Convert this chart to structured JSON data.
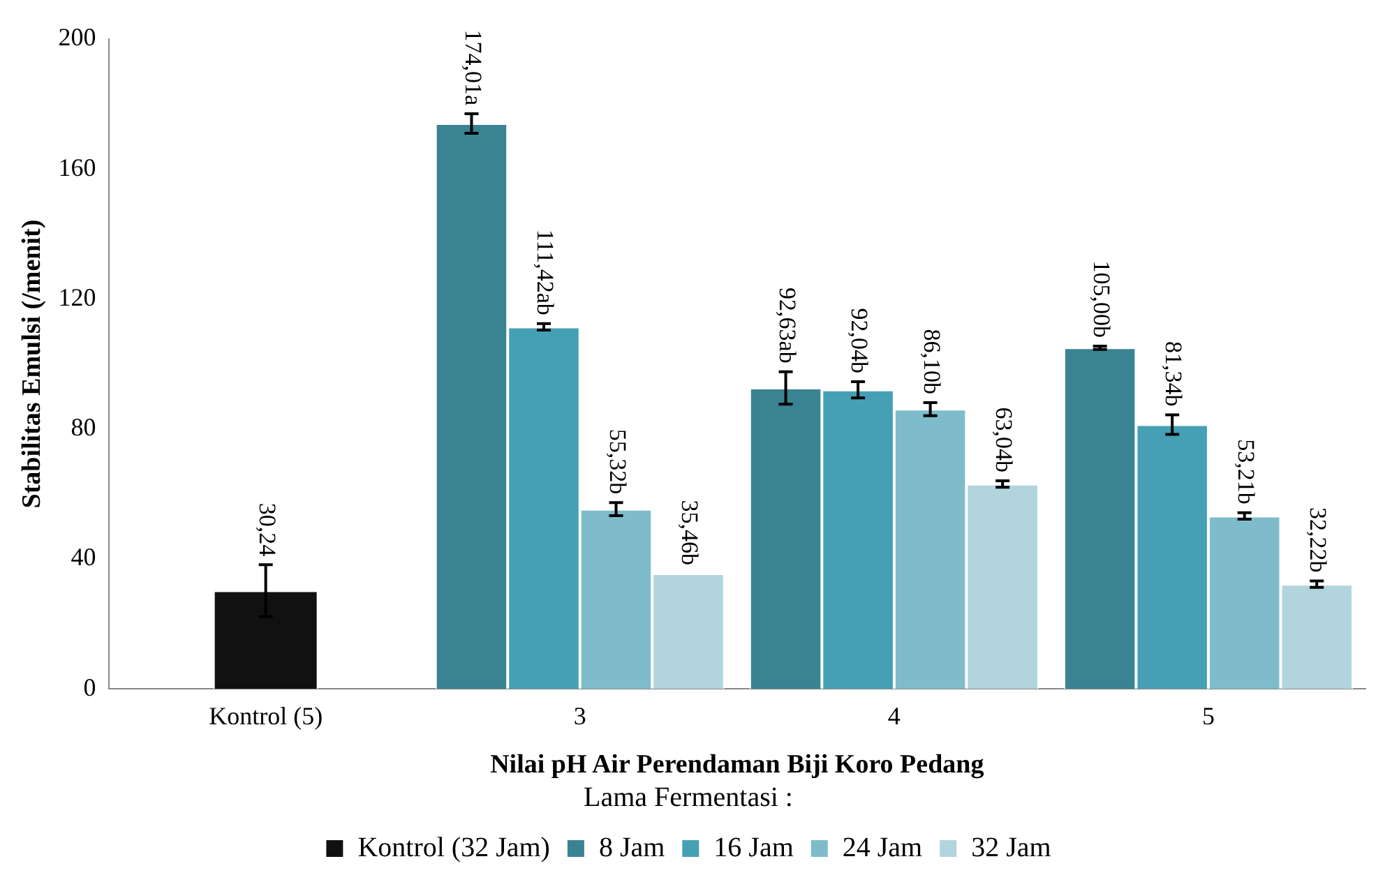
{
  "chart_data": {
    "type": "bar",
    "xlabel": "Nilai pH Air Perendaman Biji Koro Pedang",
    "ylabel": "Stabilitas Emulsi (/menit)",
    "legend_title": "Lama Fermentasi :",
    "categories": [
      "Kontrol (5)",
      "3",
      "4",
      "5"
    ],
    "series": [
      {
        "name": "Kontrol (32 Jam)",
        "color": "#111111",
        "values": [
          30.24,
          null,
          null,
          null
        ],
        "errors": [
          8,
          null,
          null,
          null
        ],
        "value_labels": [
          "30,24",
          null,
          null,
          null
        ]
      },
      {
        "name": "8 Jam",
        "color": "#3a8393",
        "values": [
          null,
          174.01,
          92.63,
          105.0
        ],
        "errors": [
          null,
          3,
          5,
          0.5
        ],
        "value_labels": [
          null,
          "174,01a",
          "92,63ab",
          "105,00b"
        ]
      },
      {
        "name": "16 Jam",
        "color": "#46a0b5",
        "values": [
          null,
          111.42,
          92.04,
          81.34
        ],
        "errors": [
          null,
          1,
          2.5,
          3
        ],
        "value_labels": [
          null,
          "111,42ab",
          "92,04b",
          "81,34b"
        ]
      },
      {
        "name": "24 Jam",
        "color": "#7ebccb",
        "values": [
          null,
          55.32,
          86.1,
          53.21
        ],
        "errors": [
          null,
          2,
          2,
          1
        ],
        "value_labels": [
          null,
          "55,32b",
          "86,10b",
          "53,21b"
        ]
      },
      {
        "name": "32 Jam",
        "color": "#b1d4dd",
        "values": [
          null,
          35.46,
          63.04,
          32.22
        ],
        "errors": [
          null,
          null,
          1,
          1
        ],
        "value_labels": [
          null,
          "35,46b",
          "63,04b",
          "32,22b"
        ]
      }
    ],
    "ylim": [
      0,
      200
    ],
    "yticks": [
      0,
      40,
      80,
      120,
      160,
      200
    ],
    "grid": false,
    "legend": "bottom"
  }
}
